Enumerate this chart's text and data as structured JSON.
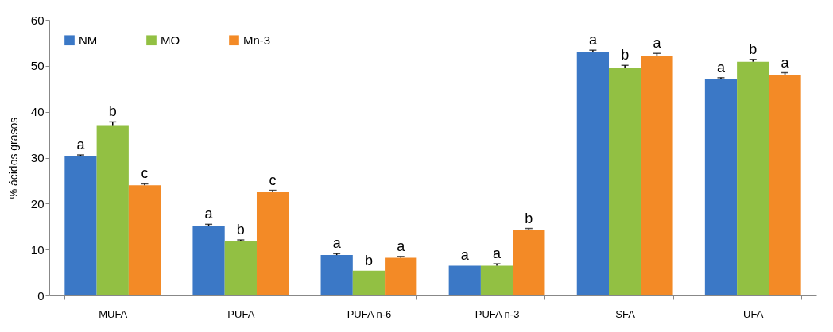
{
  "chart_data": {
    "type": "bar",
    "ylabel": "% ácidos grasos",
    "categories": [
      "MUFA",
      "PUFA",
      "PUFA n-6",
      "PUFA n-3",
      "SFA",
      "UFA"
    ],
    "series": [
      {
        "name": "NM",
        "color": "#3b78c6",
        "values": [
          30.3,
          15.2,
          8.8,
          6.5,
          53.1,
          47.1
        ],
        "errors": [
          0.3,
          0.3,
          0.3,
          null,
          0.3,
          0.3
        ]
      },
      {
        "name": "MO",
        "color": "#92c043",
        "values": [
          36.9,
          11.8,
          5.4,
          6.5,
          49.5,
          50.9
        ],
        "errors": [
          0.9,
          0.3,
          null,
          0.4,
          0.6,
          0.5
        ]
      },
      {
        "name": "Mn-3",
        "color": "#f38a26",
        "values": [
          24.0,
          22.5,
          8.2,
          14.2,
          52.1,
          48.0
        ],
        "errors": [
          0.3,
          0.4,
          0.3,
          0.4,
          0.6,
          0.5
        ]
      }
    ],
    "ylim": [
      0,
      60
    ],
    "yticks": [
      0,
      10,
      20,
      30,
      40,
      50,
      60
    ],
    "grid": false,
    "legend": "top left",
    "annotations": [
      "a",
      "b",
      "c",
      "a",
      "b",
      "c",
      "a",
      "b",
      "a",
      "a",
      "a",
      "b",
      "a",
      "b",
      "a",
      "a",
      "b",
      "a"
    ]
  }
}
